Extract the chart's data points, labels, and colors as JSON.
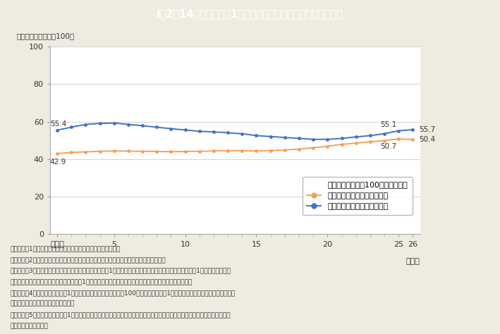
{
  "title": "I－2－14図　労働者の1時間当たり平均所定内給与格差の推移",
  "title_bg_color": "#4BBFCF",
  "title_text_color": "#ffffff",
  "bg_color": "#F0EBE0",
  "plot_bg_color": "#ffffff",
  "ylabel_text": "（男性一般労働者＝100）",
  "years": [
    1,
    2,
    3,
    4,
    5,
    6,
    7,
    8,
    9,
    10,
    11,
    12,
    13,
    14,
    15,
    16,
    17,
    18,
    19,
    20,
    21,
    22,
    23,
    24,
    25,
    26
  ],
  "female_data": [
    42.9,
    43.5,
    43.8,
    44.1,
    44.3,
    44.2,
    44.1,
    44.0,
    43.9,
    44.0,
    44.1,
    44.3,
    44.5,
    44.4,
    44.3,
    44.5,
    44.8,
    45.3,
    46.0,
    46.8,
    47.8,
    48.5,
    49.2,
    49.8,
    50.7,
    50.4
  ],
  "male_data": [
    55.4,
    57.0,
    58.5,
    59.0,
    59.2,
    58.5,
    57.8,
    57.0,
    56.2,
    55.5,
    54.8,
    54.5,
    54.0,
    53.5,
    52.5,
    52.0,
    51.5,
    51.0,
    50.5,
    50.5,
    51.0,
    51.8,
    52.5,
    53.5,
    55.1,
    55.7
  ],
  "female_color": "#F5A05A",
  "male_color": "#4472C4",
  "female_label": "女性短時間労働者の給与水準",
  "male_label": "男性短時間労働者の給与水準",
  "legend_title": "男性一般労働者を100とした場合の",
  "footnotes": [
    "（備考）　1．厚生労働省「賃金構造基本統計調査」より作成。",
    "　　　　　2．「一般労働者」は，常用労働者のうち，「短時間労働者」以外の者をいう。",
    "　　　　　3．「短時間労働者」は，常用労働者のうち，1日の所定労働時間が一般の労働者よりも短い又は1日の所定労働時間",
    "　　　　　　　が一般の労働者と同じでも1週の所定労働日数が一般の労働者よりも少ない労働者をいう。",
    "　　　　　4．男性一般労働者の1時間当たり平均所定内給与額を100として，各区分の1時間当たり平均所定内給与額の水準を",
    "　　　　　　　算出したものである。",
    "　　　　　5．男性一般労働者の1時間当たり平均所定内給与額は，所定内給与額を所定内実労働時間数で除して算出したもので",
    "　　　　　　　ある。"
  ]
}
